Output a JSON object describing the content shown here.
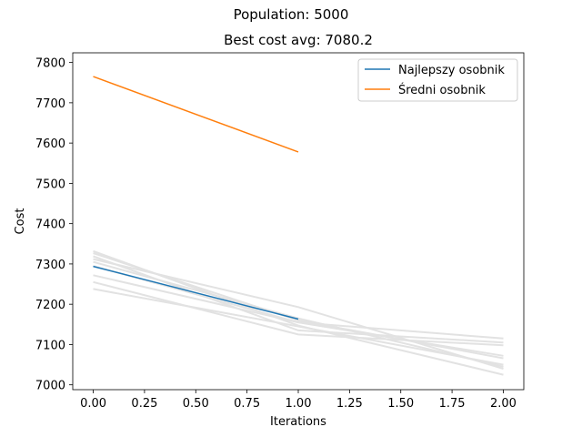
{
  "chart_data": {
    "type": "line",
    "suptitle": "Population: 5000",
    "title": "Best cost avg: 7080.2",
    "xlabel": "Iterations",
    "ylabel": "Cost",
    "xlim": [
      -0.1,
      2.1
    ],
    "ylim": [
      6988,
      7824
    ],
    "xticks": [
      0.0,
      0.25,
      0.5,
      0.75,
      1.0,
      1.25,
      1.5,
      1.75,
      2.0
    ],
    "xtick_labels": [
      "0.00",
      "0.25",
      "0.50",
      "0.75",
      "1.00",
      "1.25",
      "1.50",
      "1.75",
      "2.00"
    ],
    "yticks": [
      7000,
      7100,
      7200,
      7300,
      7400,
      7500,
      7600,
      7700,
      7800
    ],
    "ytick_labels": [
      "7000",
      "7100",
      "7200",
      "7300",
      "7400",
      "7500",
      "7600",
      "7700",
      "7800"
    ],
    "grid": false,
    "legend_position": "top-right",
    "background_runs": {
      "color": "#e2e2e2",
      "x": [
        0,
        1,
        2
      ],
      "runs": [
        [
          7332,
          7147,
          7025
        ],
        [
          7327,
          7160,
          7066
        ],
        [
          7319,
          7135,
          7105
        ],
        [
          7312,
          7193,
          7040
        ],
        [
          7305,
          7165,
          7045
        ],
        [
          7295,
          7155,
          7072
        ],
        [
          7272,
          7155,
          7115
        ],
        [
          7255,
          7125,
          7098
        ],
        [
          7238,
          7145,
          7050
        ]
      ]
    },
    "series": [
      {
        "name": "Najlepszy osobnik",
        "color": "#1f77b4",
        "x": [
          0,
          1
        ],
        "values": [
          7294,
          7163
        ]
      },
      {
        "name": "Średni osobnik",
        "color": "#ff7f0e",
        "x": [
          0,
          1
        ],
        "values": [
          7765,
          7578
        ]
      }
    ]
  }
}
